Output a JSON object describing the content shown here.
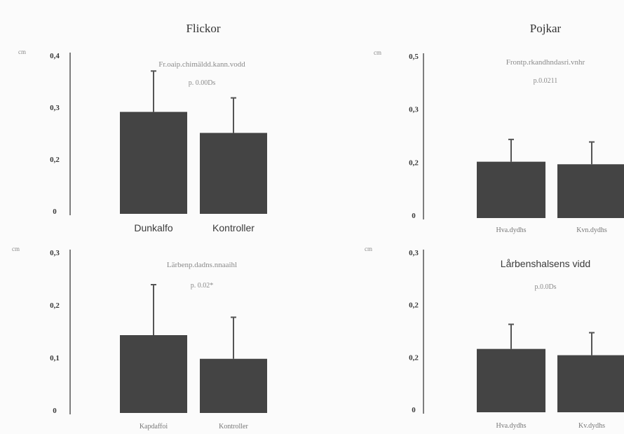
{
  "groups": [
    {
      "title": "Flickor"
    },
    {
      "title": "Pojkar"
    }
  ],
  "chart_data": [
    {
      "type": "bar",
      "group": 0,
      "title": "Fr.oaip.chimäldd.kann.vodd",
      "subtitle": "p. 0.00Ds",
      "unit": "cm",
      "yticks": [
        "0,4",
        "0,3",
        "0,2",
        "0"
      ],
      "ylim": [
        0,
        0.4
      ],
      "categories": [
        "Dunkalfo",
        "Kontroller"
      ],
      "values": [
        0.262,
        0.208
      ],
      "errors": [
        0.105,
        0.09
      ],
      "title_dark": false,
      "categories_dark": true
    },
    {
      "type": "bar",
      "group": 1,
      "title": "Frontp.rkandhndasri.vnhr",
      "subtitle": "p.0.0211",
      "unit": "cm",
      "yticks": [
        "0,5",
        "0,3",
        "0,2",
        "0"
      ],
      "ylim": [
        0,
        0.5
      ],
      "categories": [
        "Hva.dydhs",
        "Kvn.dydhs"
      ],
      "values": [
        0.177,
        0.169
      ],
      "errors": [
        0.07,
        0.07
      ],
      "title_dark": false,
      "categories_dark": false
    },
    {
      "type": "bar",
      "group": 0,
      "title": "Lärbenp.dadns.nnaaihl",
      "subtitle": "p. 0.02*",
      "unit": "cm",
      "yticks": [
        "0,3",
        "0,2",
        "0,1",
        "0"
      ],
      "ylim": [
        0,
        0.3
      ],
      "categories": [
        "Kapdaffoi",
        "Kontroller"
      ],
      "values": [
        0.148,
        0.103
      ],
      "errors": [
        0.096,
        0.079
      ],
      "title_dark": false,
      "categories_dark": false
    },
    {
      "type": "bar",
      "group": 1,
      "title": "Lårbenshalsens vidd",
      "subtitle": "p.0.0Ds",
      "unit": "cm",
      "yticks": [
        "0,3",
        "0,2",
        "0,2",
        "0"
      ],
      "ylim": [
        0,
        0.3
      ],
      "categories": [
        "Hva.dydhs",
        "Kv.dydhs"
      ],
      "values": [
        0.121,
        0.109
      ],
      "errors": [
        0.047,
        0.043
      ],
      "title_dark": true,
      "categories_dark": false
    }
  ]
}
